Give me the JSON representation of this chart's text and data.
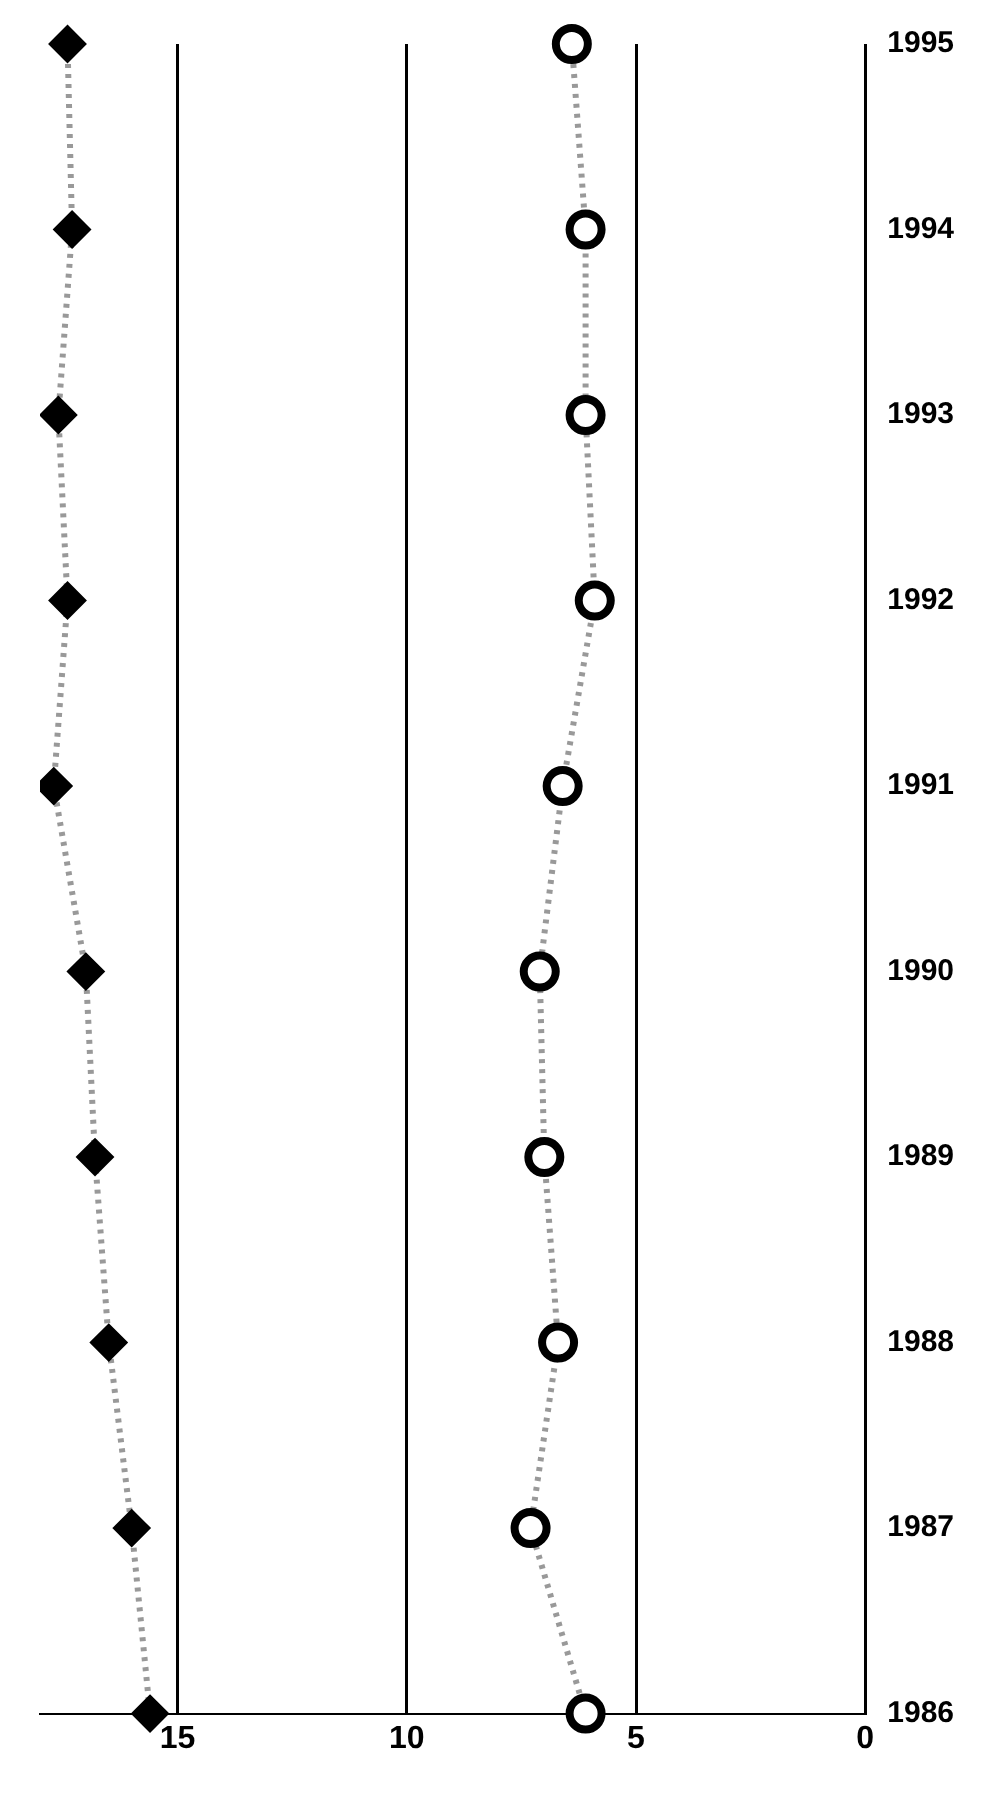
{
  "chart_data": {
    "type": "line",
    "orientation": "horizontal",
    "categories": [
      "1995",
      "1994",
      "1993",
      "1992",
      "1991",
      "1990",
      "1989",
      "1988",
      "1987",
      "1986"
    ],
    "series": [
      {
        "color": "#000000",
        "marker": "diamond",
        "values": [
          17.4,
          17.3,
          17.6,
          17.4,
          17.7,
          17.0,
          16.8,
          16.5,
          16.0,
          15.6
        ]
      },
      {
        "color": "#000000",
        "marker": "circle",
        "values": [
          6.4,
          6.1,
          6.1,
          5.9,
          6.6,
          7.1,
          7.0,
          6.7,
          7.3,
          6.1
        ]
      }
    ],
    "xlim": [
      18,
      0
    ],
    "xticks": [
      0,
      5,
      10,
      15
    ],
    "grid": "x",
    "line_style": "dotted",
    "legend": false
  }
}
